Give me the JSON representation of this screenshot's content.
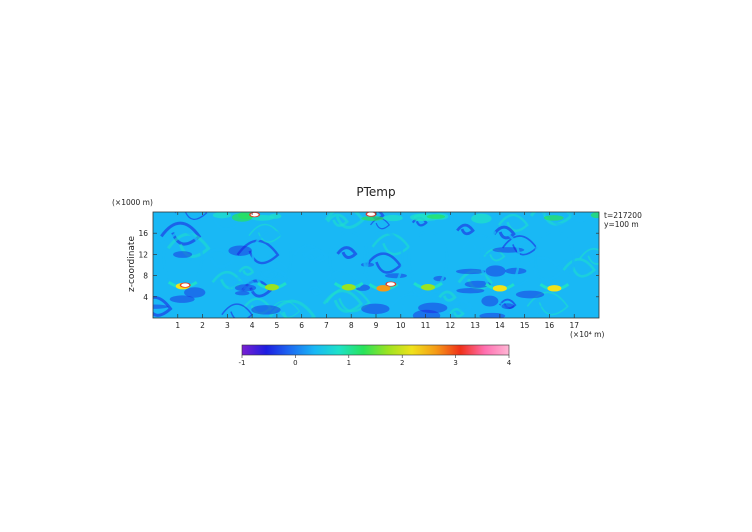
{
  "chart_data": {
    "type": "heatmap",
    "title": "PTemp",
    "ylabel": "z-coordinate",
    "y_unit_label": "(×1000 m)",
    "x_unit_label": "(×10⁴ m)",
    "xlim": [
      0,
      18
    ],
    "ylim": [
      0,
      20
    ],
    "x_ticks": [
      1,
      2,
      3,
      4,
      5,
      6,
      7,
      8,
      9,
      10,
      11,
      12,
      13,
      14,
      15,
      16,
      17
    ],
    "y_ticks": [
      4,
      8,
      12,
      16
    ],
    "annotations": [
      "t=217200",
      "y=100 m"
    ],
    "colorbar": {
      "ticks": [
        -1,
        0,
        1,
        2,
        3,
        4
      ],
      "range": [
        -1,
        4
      ],
      "colors": [
        "#7a1fd1",
        "#1d1de0",
        "#1d6cf2",
        "#19b8f5",
        "#1ee2c8",
        "#28e35a",
        "#9be321",
        "#f0e21b",
        "#f59a17",
        "#f03019",
        "#ff6fb0",
        "#ffb6d5"
      ]
    },
    "background_level": 0.4,
    "plumes": [
      {
        "x": 1.2,
        "z": 6.0,
        "peak": 2.0
      },
      {
        "x": 4.8,
        "z": 5.8,
        "peak": 1.8
      },
      {
        "x": 7.9,
        "z": 5.8,
        "peak": 1.9
      },
      {
        "x": 9.3,
        "z": 5.6,
        "peak": 2.6
      },
      {
        "x": 11.1,
        "z": 5.8,
        "peak": 1.8
      },
      {
        "x": 14.0,
        "z": 5.6,
        "peak": 2.0
      },
      {
        "x": 16.2,
        "z": 5.6,
        "peak": 2.0
      }
    ],
    "hot_spots": [
      {
        "x": 1.3,
        "z": 6.2,
        "value": 4.0
      },
      {
        "x": 9.6,
        "z": 6.4,
        "value": 4.0
      },
      {
        "x": 4.1,
        "z": 19.5,
        "value": 4.0
      },
      {
        "x": 8.8,
        "z": 19.6,
        "value": 4.0
      }
    ]
  }
}
